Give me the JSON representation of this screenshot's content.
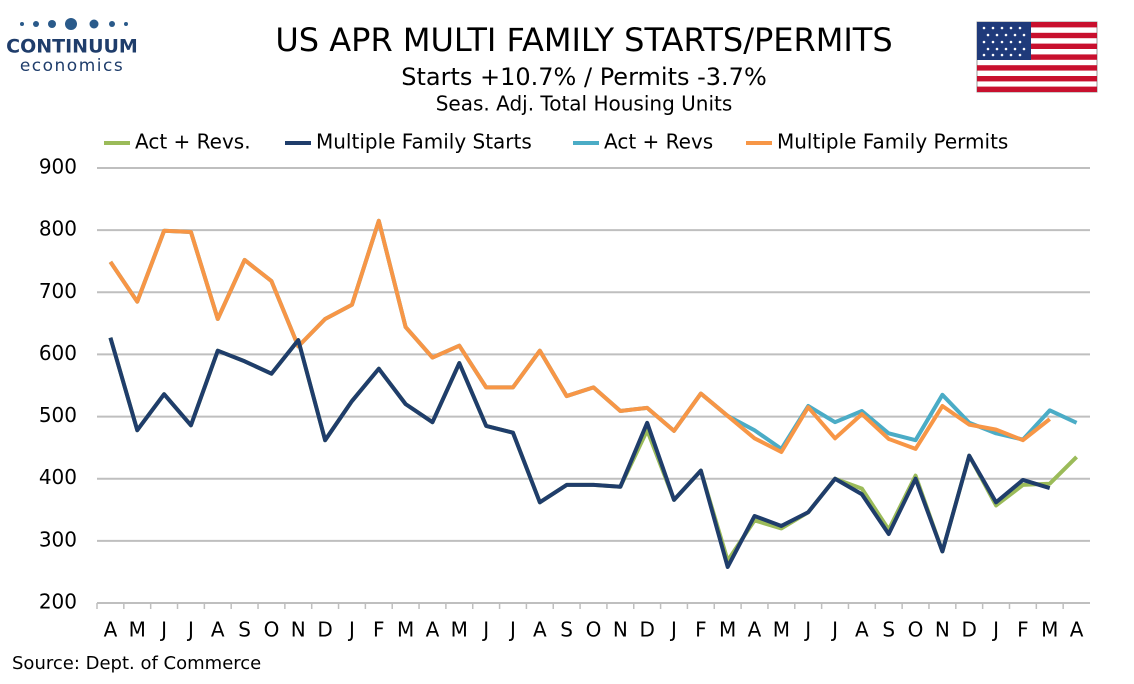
{
  "brand": {
    "name": "CONTINUUM",
    "tagline": "economics"
  },
  "source": "Source: Dept. of Commerce",
  "chart_data": {
    "type": "line",
    "title": "US APR MULTI FAMILY STARTS/PERMITS",
    "subtitle": "Starts  +10.7% / Permits -3.7%",
    "subtitle2": "Seas. Adj. Total Housing Units",
    "categories": [
      "A",
      "M",
      "J",
      "J",
      "A",
      "S",
      "O",
      "N",
      "D",
      "J",
      "F",
      "M",
      "A",
      "M",
      "J",
      "J",
      "A",
      "S",
      "O",
      "N",
      "D",
      "J",
      "F",
      "M",
      "A",
      "M",
      "J",
      "J",
      "A",
      "S",
      "O",
      "N",
      "D",
      "J",
      "F",
      "M",
      "A"
    ],
    "series": [
      {
        "name": "Act + Revs.",
        "color": "#9bbb59",
        "values": [
          627,
          478,
          536,
          486,
          606,
          589,
          569,
          623,
          462,
          525,
          577,
          520,
          491,
          586,
          485,
          474,
          362,
          390,
          390,
          387,
          478,
          366,
          413,
          268,
          333,
          320,
          346,
          400,
          384,
          318,
          405,
          283,
          437,
          357,
          390,
          392,
          435
        ]
      },
      {
        "name": "Multiple Family Starts",
        "color": "#1f3d6b",
        "values": [
          627,
          478,
          536,
          486,
          606,
          589,
          569,
          623,
          462,
          525,
          577,
          520,
          491,
          586,
          485,
          474,
          362,
          390,
          390,
          387,
          490,
          366,
          413,
          258,
          340,
          324,
          346,
          400,
          375,
          311,
          400,
          283,
          437,
          362,
          398,
          385,
          null
        ]
      },
      {
        "name": "Act + Revs",
        "color": "#4bacc6",
        "values": [
          749,
          685,
          799,
          797,
          657,
          752,
          718,
          613,
          657,
          680,
          815,
          644,
          595,
          614,
          547,
          547,
          606,
          533,
          547,
          509,
          514,
          477,
          537,
          501,
          478,
          448,
          517,
          491,
          509,
          473,
          462,
          535,
          490,
          473,
          463,
          510,
          490
        ]
      },
      {
        "name": "Multiple Family Permits",
        "color": "#f79646",
        "values": [
          749,
          685,
          799,
          797,
          657,
          752,
          718,
          613,
          657,
          680,
          815,
          644,
          595,
          614,
          547,
          547,
          606,
          533,
          547,
          509,
          514,
          477,
          537,
          501,
          465,
          443,
          515,
          465,
          504,
          464,
          448,
          517,
          487,
          479,
          462,
          496,
          null
        ]
      }
    ],
    "ylim": [
      200,
      900
    ],
    "yticks": [
      200,
      300,
      400,
      500,
      600,
      700,
      800,
      900
    ],
    "grid": true
  }
}
